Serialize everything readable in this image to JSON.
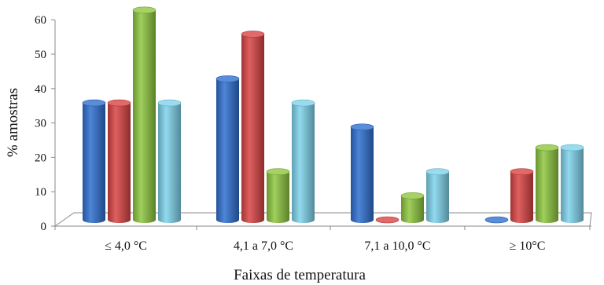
{
  "chart_data": {
    "type": "bar",
    "categories": [
      "≤ 4,0 °C",
      "4,1 a 7,0 °C",
      "7,1 a 10,0 °C",
      "≥ 10°C"
    ],
    "series": [
      {
        "values": [
          34,
          41,
          27,
          0
        ],
        "color": "#2f6fd0"
      },
      {
        "values": [
          34,
          54,
          0,
          14
        ],
        "color": "#d94444"
      },
      {
        "values": [
          61,
          14,
          7,
          21
        ],
        "color": "#8ec63f"
      },
      {
        "values": [
          34,
          34,
          14,
          21
        ],
        "color": "#7fd3ec"
      }
    ],
    "xlabel": "Faixas de temperatura",
    "ylabel": "% amostras",
    "ylim": [
      0,
      60
    ],
    "yticks": [
      "0",
      "10",
      "20",
      "30",
      "40",
      "50",
      "60"
    ],
    "grid": false,
    "legend": "none"
  }
}
